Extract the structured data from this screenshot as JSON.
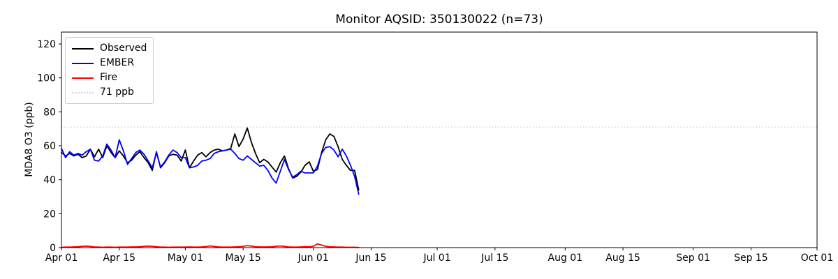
{
  "colors": {
    "observed": "#000000",
    "ember": "#0000ff",
    "fire": "#ff0000",
    "threshold": "#d3d3d3",
    "axis": "#000000",
    "legend_border": "#cccccc"
  },
  "chart_data": {
    "type": "line",
    "title": "Monitor AQSID: 350130022 (n=73)",
    "xlabel": "",
    "ylabel": "MDA8 O3 (ppb)",
    "ylim": [
      0,
      127
    ],
    "yticks": [
      0,
      20,
      40,
      60,
      80,
      100,
      120
    ],
    "x_range_days": [
      0,
      183
    ],
    "x_start_label": "Apr 01",
    "xtick_labels": [
      "Apr 01",
      "Apr 15",
      "May 01",
      "May 15",
      "Jun 01",
      "Jun 15",
      "Jul 01",
      "Jul 15",
      "Aug 01",
      "Aug 15",
      "Sep 01",
      "Sep 15",
      "Oct 01"
    ],
    "xtick_days": [
      0,
      14,
      30,
      44,
      61,
      75,
      91,
      105,
      122,
      136,
      153,
      167,
      183
    ],
    "grid": false,
    "legend_position": "upper left",
    "legend": [
      "Observed",
      "EMBER",
      "Fire",
      "71 ppb"
    ],
    "threshold": {
      "label": "71 ppb",
      "value": 71
    },
    "n_points": 73,
    "series": [
      {
        "name": "Observed",
        "color": "#000000",
        "style": "solid",
        "start_day": 0,
        "values": [
          56,
          54,
          55.5,
          54,
          55,
          53,
          54,
          58,
          53.5,
          58,
          53,
          60,
          56,
          53,
          57,
          54,
          50,
          51.5,
          54.5,
          56.5,
          53,
          50,
          45.5,
          56.5,
          47,
          50,
          54,
          55,
          54.5,
          51,
          57.5,
          47,
          51,
          54.5,
          56,
          53.5,
          56,
          57.5,
          58,
          57,
          57.5,
          58.5,
          67,
          59.5,
          64,
          70.5,
          62,
          55.5,
          50,
          52,
          50.5,
          47.5,
          44.5,
          50,
          54,
          46.5,
          41,
          42,
          44.5,
          48.5,
          50.5,
          45,
          46,
          56,
          63.5,
          67,
          65.5,
          59.5,
          52,
          48.5,
          45.5,
          45.5,
          34
        ]
      },
      {
        "name": "EMBER",
        "color": "#0000ff",
        "style": "solid",
        "start_day": 0,
        "values": [
          58.5,
          53,
          56.5,
          54.5,
          55.5,
          54.5,
          56.5,
          58,
          51.5,
          51,
          54,
          61,
          57.5,
          53,
          63.5,
          57,
          49,
          52.5,
          56,
          57.5,
          55,
          51,
          47,
          56,
          47.5,
          50.5,
          54.5,
          57.5,
          56,
          53,
          53,
          47,
          47.5,
          48.5,
          51,
          51.5,
          52.5,
          55.5,
          56.5,
          57,
          57.5,
          58,
          55.5,
          52.5,
          51.5,
          54,
          52,
          50,
          48,
          48.5,
          45.5,
          41,
          38,
          45,
          52,
          46,
          41.5,
          43,
          45,
          44,
          44,
          44,
          48,
          55.5,
          59,
          59.5,
          57.5,
          53.5,
          58,
          54,
          48.5,
          42,
          31.5
        ]
      },
      {
        "name": "Fire",
        "color": "#ff0000",
        "style": "solid",
        "start_day": 0,
        "values": [
          0.2,
          0.3,
          0.3,
          0.4,
          0.5,
          0.8,
          0.9,
          0.7,
          0.4,
          0.3,
          0.2,
          0.3,
          0.3,
          0.2,
          0.3,
          0.3,
          0.3,
          0.4,
          0.4,
          0.5,
          0.8,
          0.9,
          0.8,
          0.5,
          0.3,
          0.3,
          0.2,
          0.3,
          0.3,
          0.3,
          0.3,
          0.4,
          0.3,
          0.3,
          0.4,
          0.6,
          1.0,
          0.7,
          0.4,
          0.3,
          0.3,
          0.3,
          0.4,
          0.5,
          0.8,
          1.2,
          0.9,
          0.5,
          0.4,
          0.4,
          0.4,
          0.5,
          0.8,
          1.0,
          0.7,
          0.4,
          0.3,
          0.3,
          0.4,
          0.5,
          0.5,
          0.8,
          2.2,
          1.5,
          0.8,
          0.5,
          0.4,
          0.3,
          0.3,
          0.2,
          0.2,
          0.2,
          0.1
        ]
      }
    ]
  }
}
